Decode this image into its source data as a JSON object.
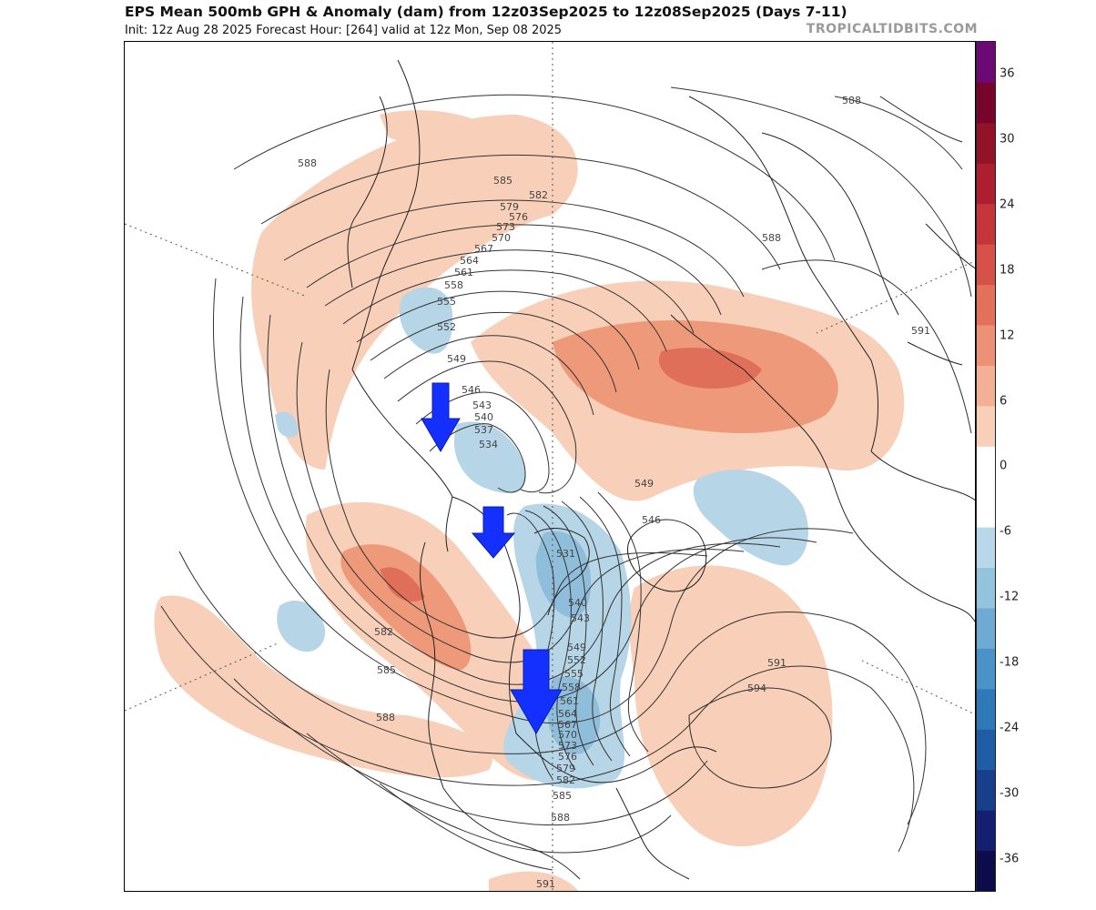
{
  "header": {
    "title": "EPS Mean 500mb GPH & Anomaly (dam) from 12z03Sep2025 to 12z08Sep2025 (Days 7-11)",
    "subtitle": "Init: 12z Aug 28 2025   Forecast Hour: [264]   valid at 12z Mon, Sep 08 2025",
    "brand": "TROPICALTIDBITS.COM"
  },
  "colorbar": {
    "ticks": [
      "36",
      "30",
      "24",
      "18",
      "12",
      "6",
      "0",
      "-6",
      "-12",
      "-18",
      "-24",
      "-30",
      "-36"
    ],
    "colors": [
      "#0d0c4a",
      "#14206f",
      "#173f8c",
      "#1f5ea6",
      "#2f79b8",
      "#4a93c6",
      "#6eaad1",
      "#94c3de",
      "#b8d7e8",
      "#ffffff",
      "#ffffff",
      "#f8cfb8",
      "#f2b095",
      "#ec9175",
      "#e37159",
      "#d65148",
      "#c43639",
      "#ad1f2f",
      "#921228",
      "#77052b",
      "#6a0a72"
    ]
  },
  "contour_labels": [
    "588",
    "585",
    "582",
    "579",
    "576",
    "573",
    "570",
    "567",
    "564",
    "561",
    "558",
    "555",
    "552",
    "549",
    "546",
    "543",
    "540",
    "537",
    "534",
    "531",
    "591",
    "594"
  ],
  "map_labels": {
    "top_left_588": "588",
    "arctic_585": "585",
    "arctic_582": "582",
    "arctic_579": "579",
    "arctic_576": "576",
    "arctic_573": "573",
    "arctic_570": "570",
    "arctic_567": "567",
    "arctic_564": "564",
    "arctic_561": "561",
    "arctic_558": "558",
    "arctic_555": "555",
    "arctic_552": "552",
    "arctic_549": "549",
    "low_546": "546",
    "low_543": "543",
    "low_540": "540",
    "low_537": "537",
    "low_534": "534",
    "green_549": "549",
    "green_546": "546",
    "hudson_531": "531",
    "lakes_540": "540",
    "lakes_543": "543",
    "lakes_549": "549",
    "lakes_552": "552",
    "lakes_555": "555",
    "lakes_558": "558",
    "lakes_561": "561",
    "lakes_564": "564",
    "lakes_567": "567",
    "lakes_570": "570",
    "lakes_573": "573",
    "lakes_576": "576",
    "lakes_579": "579",
    "lakes_582": "582",
    "lakes_585": "585",
    "lakes_588": "588",
    "pac_582": "582",
    "pac_585": "585",
    "pac_588": "588",
    "atl_591": "591",
    "atl_594": "594",
    "asia_591": "591",
    "eur_588": "588",
    "eur_588b": "588",
    "bottom_591": "591"
  },
  "arrows": {
    "count": 3,
    "color": "#1430ff"
  }
}
